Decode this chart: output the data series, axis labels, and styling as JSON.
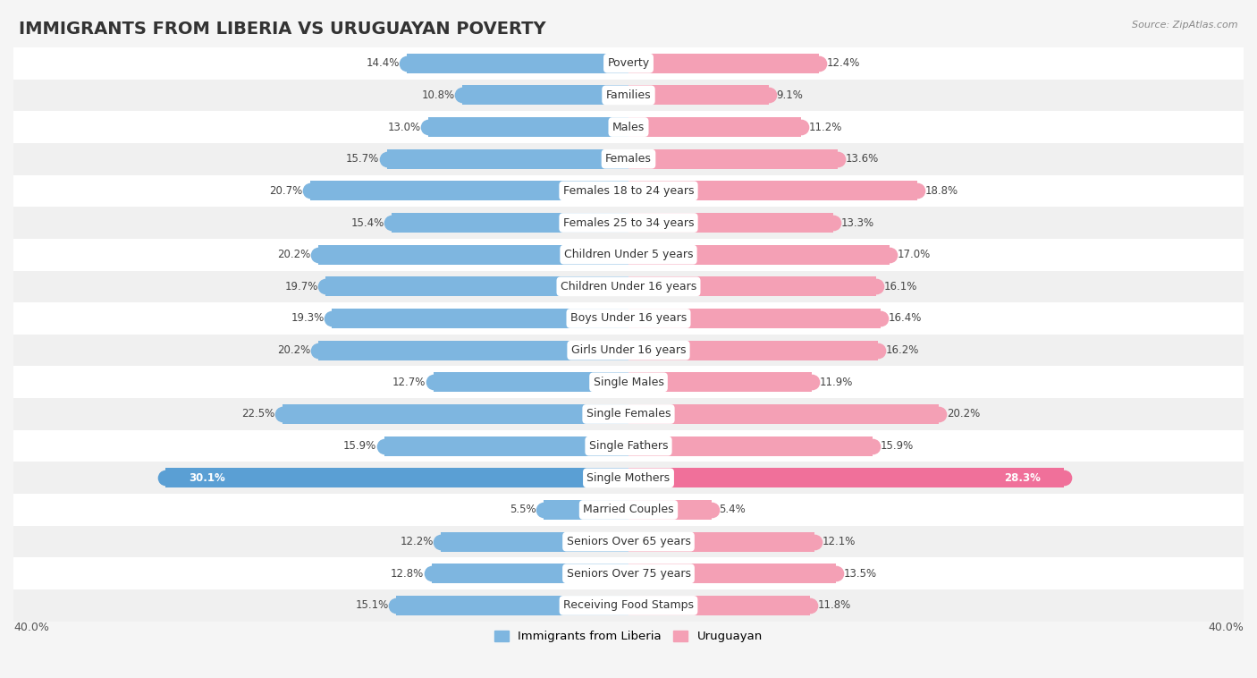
{
  "title": "IMMIGRANTS FROM LIBERIA VS URUGUAYAN POVERTY",
  "source": "Source: ZipAtlas.com",
  "categories": [
    "Poverty",
    "Families",
    "Males",
    "Females",
    "Females 18 to 24 years",
    "Females 25 to 34 years",
    "Children Under 5 years",
    "Children Under 16 years",
    "Boys Under 16 years",
    "Girls Under 16 years",
    "Single Males",
    "Single Females",
    "Single Fathers",
    "Single Mothers",
    "Married Couples",
    "Seniors Over 65 years",
    "Seniors Over 75 years",
    "Receiving Food Stamps"
  ],
  "liberia_values": [
    14.4,
    10.8,
    13.0,
    15.7,
    20.7,
    15.4,
    20.2,
    19.7,
    19.3,
    20.2,
    12.7,
    22.5,
    15.9,
    30.1,
    5.5,
    12.2,
    12.8,
    15.1
  ],
  "uruguayan_values": [
    12.4,
    9.1,
    11.2,
    13.6,
    18.8,
    13.3,
    17.0,
    16.1,
    16.4,
    16.2,
    11.9,
    20.2,
    15.9,
    28.3,
    5.4,
    12.1,
    13.5,
    11.8
  ],
  "liberia_color": "#7EB6E0",
  "uruguayan_color": "#F4A0B5",
  "liberia_highlight_color": "#5A9FD4",
  "uruguayan_highlight_color": "#F0709A",
  "row_color_even": "#f0f0f0",
  "row_color_odd": "#ffffff",
  "bar_height": 0.62,
  "xlim": 40.0,
  "legend_labels": [
    "Immigrants from Liberia",
    "Uruguayan"
  ],
  "title_fontsize": 14,
  "label_fontsize": 9,
  "value_fontsize": 8.5,
  "axis_fontsize": 9,
  "single_mothers_liberia_white_text": true,
  "single_mothers_uruguayan_white_text": true
}
